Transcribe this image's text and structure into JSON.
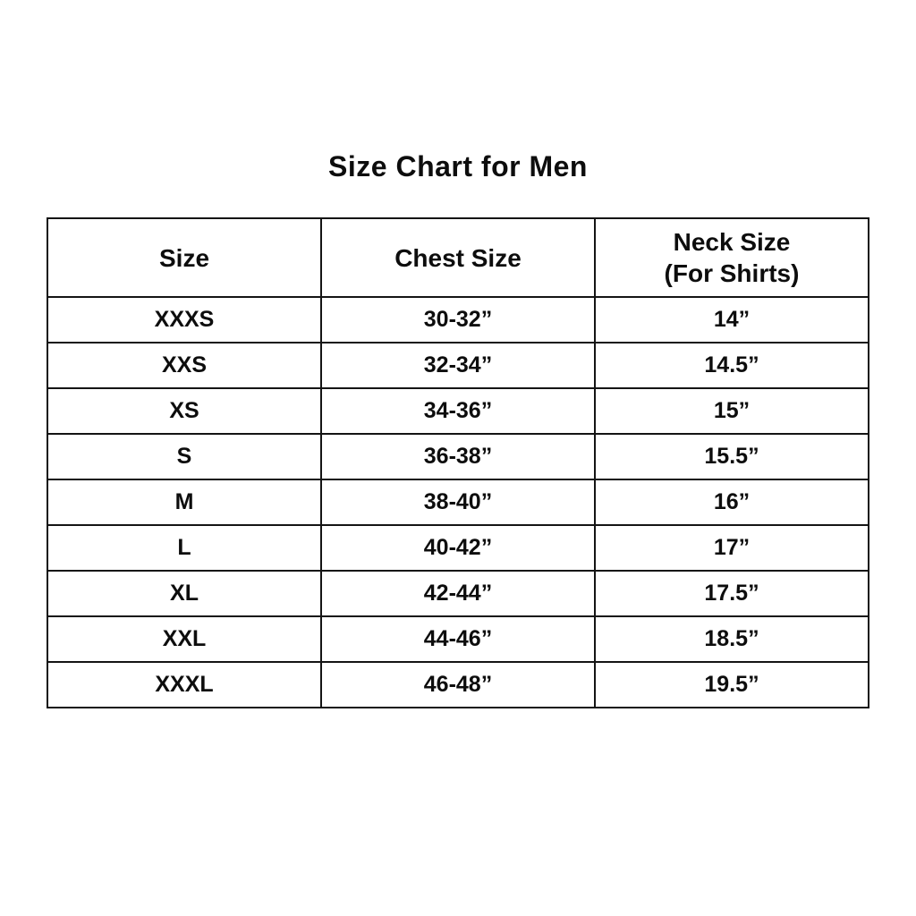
{
  "title": "Size Chart for Men",
  "colors": {
    "background": "#ffffff",
    "text": "#0d0d0d",
    "border": "#141414"
  },
  "table": {
    "headers": {
      "size": "Size",
      "chest": "Chest Size",
      "neck_line1": "Neck Size",
      "neck_line2": "(For Shirts)"
    },
    "rows": [
      {
        "size": "XXXS",
        "chest": "30-32”",
        "neck": "14”"
      },
      {
        "size": "XXS",
        "chest": "32-34”",
        "neck": "14.5”"
      },
      {
        "size": "XS",
        "chest": "34-36”",
        "neck": "15”"
      },
      {
        "size": "S",
        "chest": "36-38”",
        "neck": "15.5”"
      },
      {
        "size": "M",
        "chest": "38-40”",
        "neck": "16”"
      },
      {
        "size": "L",
        "chest": "40-42”",
        "neck": "17”"
      },
      {
        "size": "XL",
        "chest": "42-44”",
        "neck": "17.5”"
      },
      {
        "size": "XXL",
        "chest": "44-46”",
        "neck": "18.5”"
      },
      {
        "size": "XXXL",
        "chest": "46-48”",
        "neck": "19.5”"
      }
    ]
  },
  "chart_data": {
    "type": "table",
    "title": "Size Chart for Men",
    "columns": [
      "Size",
      "Chest Size",
      "Neck Size (For Shirts)"
    ],
    "rows": [
      [
        "XXXS",
        "30-32”",
        "14”"
      ],
      [
        "XXS",
        "32-34”",
        "14.5”"
      ],
      [
        "XS",
        "34-36”",
        "15”"
      ],
      [
        "S",
        "36-38”",
        "15.5”"
      ],
      [
        "M",
        "38-40”",
        "16”"
      ],
      [
        "L",
        "40-42”",
        "17”"
      ],
      [
        "XL",
        "42-44”",
        "17.5”"
      ],
      [
        "XXL",
        "44-46”",
        "18.5”"
      ],
      [
        "XXXL",
        "46-48”",
        "19.5”"
      ]
    ],
    "layout": {
      "grid": true,
      "legend": "none",
      "header_rows": 1
    }
  }
}
